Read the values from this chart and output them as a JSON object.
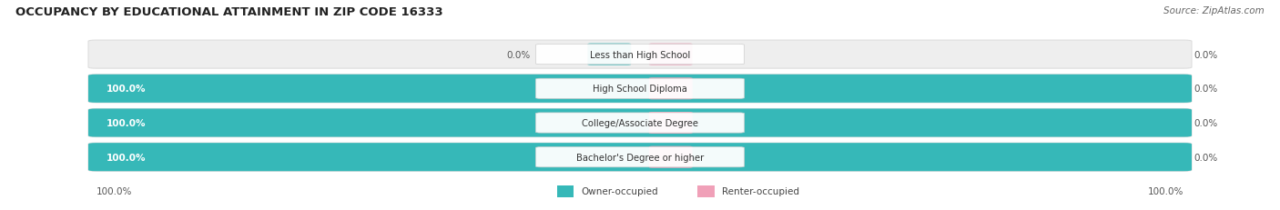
{
  "title": "OCCUPANCY BY EDUCATIONAL ATTAINMENT IN ZIP CODE 16333",
  "source": "Source: ZipAtlas.com",
  "categories": [
    "Less than High School",
    "High School Diploma",
    "College/Associate Degree",
    "Bachelor's Degree or higher"
  ],
  "owner_values": [
    0.0,
    100.0,
    100.0,
    100.0
  ],
  "renter_values": [
    0.0,
    0.0,
    0.0,
    0.0
  ],
  "owner_color": "#36b8b8",
  "renter_color": "#f0a0b8",
  "bg_color": "#ffffff",
  "bar_bg_color": "#eeeeee",
  "bar_border_color": "#dddddd",
  "text_dark": "#444444",
  "text_white": "#ffffff",
  "x_left_label": "100.0%",
  "x_right_label": "100.0%",
  "owner_label_0": "0.0%",
  "renter_labels": [
    "0.0%",
    "0.0%",
    "0.0%",
    "0.0%"
  ],
  "owner_labels": [
    "0.0%",
    "100.0%",
    "100.0%",
    "100.0%"
  ]
}
